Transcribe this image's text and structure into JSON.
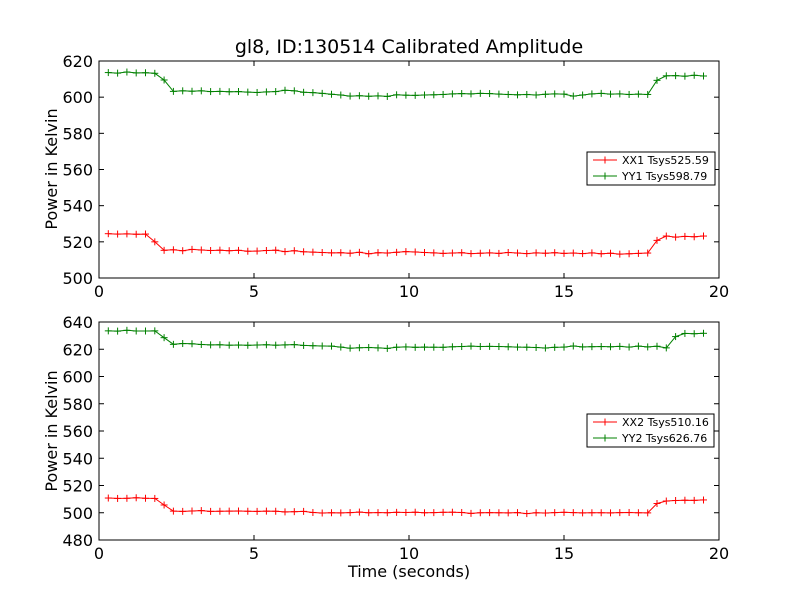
{
  "chart_data": [
    {
      "type": "line",
      "title": "gl8, ID:130514 Calibrated Amplitude",
      "xlabel": "",
      "ylabel": "Power in Kelvin",
      "xlim": [
        0,
        20
      ],
      "ylim": [
        500,
        620
      ],
      "xticks": [
        0,
        5,
        10,
        15,
        20
      ],
      "yticks": [
        500,
        520,
        540,
        560,
        580,
        600,
        620
      ],
      "grid": false,
      "legend_position": "center-right",
      "x": [
        0.3,
        0.6,
        0.9,
        1.2,
        1.5,
        1.8,
        2.1,
        2.4,
        2.7,
        3.0,
        3.3,
        3.6,
        3.9,
        4.2,
        4.5,
        4.8,
        5.1,
        5.4,
        5.7,
        6.0,
        6.3,
        6.6,
        6.9,
        7.2,
        7.5,
        7.8,
        8.1,
        8.4,
        8.7,
        9.0,
        9.3,
        9.6,
        9.9,
        10.2,
        10.5,
        10.8,
        11.1,
        11.4,
        11.7,
        12.0,
        12.3,
        12.6,
        12.9,
        13.2,
        13.5,
        13.8,
        14.1,
        14.4,
        14.7,
        15.0,
        15.3,
        15.6,
        15.9,
        16.2,
        16.5,
        16.8,
        17.1,
        17.4,
        17.7,
        18.0,
        18.3,
        18.6,
        18.9,
        19.2,
        19.5
      ],
      "series": [
        {
          "name": "XX1 Tsys525.59",
          "color": "#ff0000",
          "values": [
            524.5,
            524.3,
            524.4,
            524.2,
            524.3,
            520.0,
            515.3,
            515.6,
            515.1,
            515.8,
            515.5,
            515.2,
            515.4,
            515.1,
            515.3,
            514.8,
            514.9,
            515.2,
            515.4,
            514.6,
            515.1,
            514.5,
            514.3,
            514.1,
            513.9,
            514.0,
            513.7,
            514.2,
            513.4,
            514.0,
            513.8,
            514.2,
            514.6,
            514.4,
            514.1,
            513.9,
            513.6,
            513.8,
            514.0,
            513.5,
            513.7,
            513.9,
            513.6,
            514.1,
            513.8,
            513.5,
            513.9,
            513.7,
            514.0,
            513.6,
            513.8,
            513.5,
            513.9,
            513.4,
            513.7,
            513.2,
            513.4,
            513.6,
            513.8,
            520.8,
            523.2,
            522.6,
            523.0,
            522.8,
            523.2
          ]
        },
        {
          "name": "YY1 Tsys598.79",
          "color": "#008000",
          "values": [
            613.6,
            613.3,
            613.9,
            613.4,
            613.5,
            613.2,
            609.5,
            603.2,
            603.5,
            603.3,
            603.5,
            603.1,
            603.2,
            603.0,
            603.1,
            602.8,
            602.6,
            602.9,
            603.1,
            603.8,
            603.5,
            602.7,
            602.5,
            602.1,
            601.6,
            601.2,
            600.6,
            600.8,
            600.5,
            600.7,
            600.4,
            601.3,
            601.1,
            601.0,
            601.2,
            601.3,
            601.5,
            601.8,
            602.0,
            601.8,
            602.1,
            602.0,
            601.7,
            601.5,
            601.3,
            601.5,
            601.2,
            601.6,
            601.8,
            601.7,
            600.6,
            601.2,
            601.8,
            602.1,
            601.7,
            601.8,
            601.5,
            601.7,
            601.5,
            609.3,
            611.8,
            611.9,
            611.6,
            612.1,
            611.7
          ]
        }
      ]
    },
    {
      "type": "line",
      "title": "",
      "xlabel": "Time (seconds)",
      "ylabel": "Power in Kelvin",
      "xlim": [
        0,
        20
      ],
      "ylim": [
        480,
        640
      ],
      "xticks": [
        0,
        5,
        10,
        15,
        20
      ],
      "yticks": [
        480,
        500,
        520,
        540,
        560,
        580,
        600,
        620,
        640
      ],
      "grid": false,
      "legend_position": "center-right",
      "x": [
        0.3,
        0.6,
        0.9,
        1.2,
        1.5,
        1.8,
        2.1,
        2.4,
        2.7,
        3.0,
        3.3,
        3.6,
        3.9,
        4.2,
        4.5,
        4.8,
        5.1,
        5.4,
        5.7,
        6.0,
        6.3,
        6.6,
        6.9,
        7.2,
        7.5,
        7.8,
        8.1,
        8.4,
        8.7,
        9.0,
        9.3,
        9.6,
        9.9,
        10.2,
        10.5,
        10.8,
        11.1,
        11.4,
        11.7,
        12.0,
        12.3,
        12.6,
        12.9,
        13.2,
        13.5,
        13.8,
        14.1,
        14.4,
        14.7,
        15.0,
        15.3,
        15.6,
        15.9,
        16.2,
        16.5,
        16.8,
        17.1,
        17.4,
        17.7,
        18.0,
        18.3,
        18.6,
        18.9,
        19.2,
        19.5
      ],
      "series": [
        {
          "name": "XX2 Tsys510.16",
          "color": "#ff0000",
          "values": [
            510.8,
            510.5,
            510.6,
            511.0,
            510.6,
            510.5,
            505.7,
            501.2,
            501.0,
            501.3,
            501.6,
            501.0,
            501.1,
            501.2,
            501.3,
            501.1,
            501.0,
            501.2,
            501.1,
            500.6,
            500.8,
            501.0,
            500.2,
            499.8,
            500.0,
            499.9,
            500.1,
            500.5,
            500.0,
            500.1,
            500.0,
            500.3,
            500.2,
            500.4,
            500.0,
            500.1,
            500.3,
            500.4,
            500.2,
            499.5,
            500.0,
            500.1,
            500.0,
            499.9,
            500.1,
            499.4,
            500.0,
            499.8,
            500.1,
            500.3,
            500.1,
            499.9,
            500.0,
            500.0,
            499.9,
            500.1,
            500.2,
            500.0,
            499.9,
            506.8,
            508.6,
            509.0,
            509.2,
            509.1,
            509.4
          ]
        },
        {
          "name": "YY2 Tsys626.76",
          "color": "#008000",
          "values": [
            633.5,
            633.3,
            633.9,
            633.4,
            633.4,
            633.5,
            628.5,
            623.6,
            624.2,
            624.0,
            623.5,
            623.2,
            623.3,
            623.0,
            623.1,
            622.9,
            623.1,
            623.3,
            623.0,
            623.2,
            623.4,
            622.8,
            622.6,
            622.4,
            622.3,
            621.6,
            620.8,
            621.1,
            621.3,
            621.0,
            620.6,
            621.5,
            621.7,
            621.4,
            621.6,
            621.5,
            621.4,
            621.8,
            622.0,
            622.3,
            622.0,
            622.1,
            622.0,
            621.8,
            621.6,
            621.5,
            621.3,
            620.9,
            621.4,
            621.6,
            622.4,
            621.7,
            621.9,
            622.0,
            621.8,
            622.1,
            621.6,
            622.3,
            621.7,
            622.2,
            621.0,
            629.3,
            631.6,
            631.4,
            631.7
          ]
        }
      ]
    }
  ]
}
